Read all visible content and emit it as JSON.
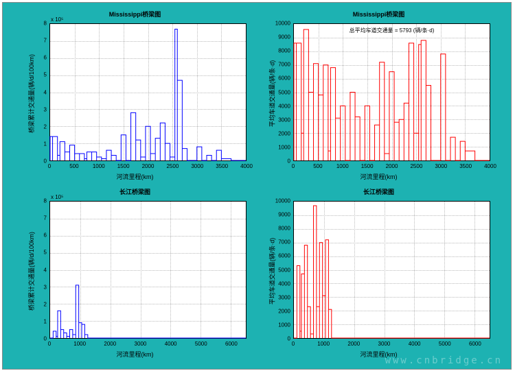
{
  "background_color": "#1db2b2",
  "plot_bgcolor": "#ffffff",
  "grid_color": "#bbbbbb",
  "axis_color": "#000000",
  "watermark": "www.cnbridge.cn",
  "panels": {
    "tl": {
      "title": "Mississippi桥梁图",
      "type": "step",
      "line_color": "#0000ff",
      "line_width": 1,
      "xlabel": "河流里程(km)",
      "ylabel": "桥梁累计交通量(辆/d/100km)",
      "exponent": "x 10⁵",
      "xlim": [
        0,
        4000
      ],
      "xtick_step": 500,
      "ylim": [
        0,
        8
      ],
      "ytick_step": 1,
      "series_x": [
        0,
        50,
        150,
        200,
        300,
        400,
        500,
        600,
        700,
        750,
        850,
        950,
        1050,
        1150,
        1250,
        1350,
        1450,
        1550,
        1650,
        1750,
        1850,
        1950,
        2050,
        2150,
        2250,
        2350,
        2450,
        2550,
        2600,
        2700,
        2800,
        2900,
        3000,
        3100,
        3200,
        3300,
        3400,
        3500,
        3700
      ],
      "series_y": [
        1.4,
        1.4,
        0.3,
        1.1,
        0.5,
        0.9,
        0.4,
        0.4,
        0.1,
        0.5,
        0.5,
        0.2,
        0.1,
        0.6,
        0.3,
        0,
        1.5,
        0,
        2.8,
        1.2,
        0.2,
        2.0,
        0.4,
        1.3,
        2.2,
        1.0,
        0.2,
        7.7,
        4.7,
        0.7,
        0,
        0,
        0.8,
        0,
        0.3,
        0,
        0.6,
        0.1,
        0
      ]
    },
    "tr": {
      "title": "Mississippi桥梁图",
      "type": "step",
      "line_color": "#ff0000",
      "line_width": 1,
      "xlabel": "河流里程(km)",
      "ylabel": "平均车道交通量(辆/条·d)",
      "annotation": "总平均车道交通量 = 5793 (辆/条·d)",
      "xlim": [
        0,
        4000
      ],
      "xtick_step": 500,
      "ylim": [
        0,
        10000
      ],
      "ytick_step": 1000,
      "series_x": [
        0,
        50,
        150,
        200,
        300,
        400,
        500,
        600,
        700,
        750,
        850,
        950,
        1050,
        1150,
        1250,
        1350,
        1450,
        1550,
        1650,
        1750,
        1850,
        1950,
        2050,
        2150,
        2250,
        2350,
        2450,
        2550,
        2600,
        2700,
        2800,
        2900,
        3000,
        3100,
        3200,
        3300,
        3400,
        3500,
        3700
      ],
      "series_y": [
        8600,
        8600,
        2000,
        9600,
        5000,
        7100,
        4800,
        7000,
        700,
        6800,
        3100,
        4000,
        0,
        5000,
        3200,
        0,
        4000,
        0,
        2600,
        7200,
        500,
        6500,
        2800,
        3000,
        4200,
        8600,
        2000,
        8500,
        8800,
        5500,
        0,
        0,
        7800,
        0,
        1700,
        0,
        1400,
        700,
        0
      ]
    },
    "bl": {
      "title": "长江桥梁图",
      "type": "step",
      "line_color": "#0000ff",
      "line_width": 1,
      "xlabel": "河流里程(km)",
      "ylabel": "桥梁累计交通量(辆/d/100km)",
      "exponent": "x 10⁵",
      "xlim": [
        0,
        6500
      ],
      "xtick_step": 1000,
      "ylim": [
        0,
        8
      ],
      "ytick_step": 1,
      "series_x": [
        0,
        100,
        200,
        250,
        350,
        450,
        550,
        650,
        750,
        850,
        950,
        1050,
        1150,
        1250,
        1350,
        6500
      ],
      "series_y": [
        0,
        0.4,
        0.1,
        1.6,
        0.5,
        0.3,
        0.1,
        0.5,
        0.2,
        3.1,
        0.9,
        0.8,
        0.2,
        0,
        0,
        0
      ]
    },
    "br": {
      "title": "长江桥梁图",
      "type": "step",
      "line_color": "#ff0000",
      "line_width": 1,
      "xlabel": "河流里程(km)",
      "ylabel": "平均车道交通量(辆/条·d)",
      "xlim": [
        0,
        6500
      ],
      "xtick_step": 1000,
      "ylim": [
        0,
        10000
      ],
      "ytick_step": 1000,
      "series_x": [
        0,
        100,
        200,
        250,
        350,
        450,
        550,
        650,
        750,
        850,
        950,
        1050,
        1150,
        1250,
        1350,
        6500
      ],
      "series_y": [
        0,
        5300,
        500,
        4700,
        6800,
        2300,
        300,
        9700,
        2300,
        7000,
        3100,
        7200,
        2100,
        0,
        0,
        0
      ]
    }
  }
}
